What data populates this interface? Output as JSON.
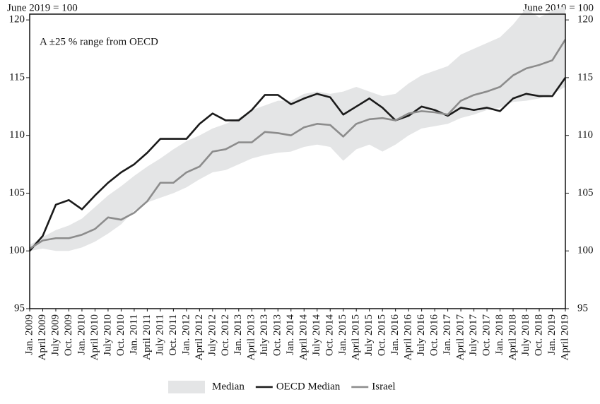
{
  "chart_data": {
    "type": "line",
    "left_note": "June 2019 = 100",
    "right_note": "June 2019 = 100",
    "annotation": "A ±25 % range from OECD",
    "categories": [
      "Jan. 2009",
      "April 2009",
      "July 2009",
      "Oct. 2009",
      "Jan. 2010",
      "April 2010",
      "July 2010",
      "Oct. 2010",
      "Jan. 2011",
      "April 2011",
      "July 2011",
      "Oct. 2011",
      "Jan. 2012",
      "April 2012",
      "July 2012",
      "Oct. 2012",
      "Jan. 2013",
      "April 2013",
      "July 2013",
      "Oct. 2013",
      "Jan. 2014",
      "April 2014",
      "July 2014",
      "Oct. 2014",
      "Jan. 2015",
      "April 2015",
      "July 2015",
      "Oct. 2015",
      "Jan. 2016",
      "April 2016",
      "July 2016",
      "Oct. 2016",
      "Jan. 2017",
      "April 2017",
      "July 2017",
      "Oct. 2017",
      "Jan. 2018",
      "April 2018",
      "July 2018",
      "Oct. 2018",
      "Jan. 2019",
      "April 2019"
    ],
    "series": [
      {
        "name": "Median",
        "kind": "band",
        "color": "#e4e5e6",
        "lower": [
          100.0,
          100.2,
          100.0,
          100.0,
          100.3,
          100.8,
          101.5,
          102.3,
          103.5,
          104.2,
          104.6,
          105.0,
          105.5,
          106.2,
          106.8,
          107.0,
          107.5,
          108.0,
          108.3,
          108.5,
          108.6,
          109.0,
          109.2,
          109.0,
          107.8,
          108.8,
          109.2,
          108.6,
          109.2,
          110.0,
          110.6,
          110.8,
          111.0,
          111.5,
          111.8,
          112.2,
          112.4,
          112.9,
          113.0,
          113.2,
          113.6,
          114.2
        ],
        "upper": [
          100.5,
          101.2,
          101.8,
          102.2,
          102.8,
          103.8,
          104.8,
          105.6,
          106.5,
          107.3,
          108.0,
          108.8,
          109.5,
          110.0,
          110.6,
          111.0,
          111.5,
          112.2,
          112.6,
          113.0,
          113.0,
          113.6,
          113.8,
          113.6,
          113.8,
          114.2,
          113.8,
          113.4,
          113.6,
          114.5,
          115.2,
          115.6,
          116.0,
          117.0,
          117.5,
          118.0,
          118.5,
          119.6,
          121.0,
          120.2,
          120.8,
          121.2
        ]
      },
      {
        "name": "OECD Median",
        "color": "#1a1a1a",
        "values": [
          100.0,
          101.3,
          104.0,
          104.4,
          103.6,
          104.8,
          105.9,
          106.8,
          107.5,
          108.5,
          109.7,
          109.7,
          109.7,
          111.0,
          111.9,
          111.3,
          111.3,
          112.2,
          113.5,
          113.5,
          112.7,
          113.2,
          113.6,
          113.3,
          111.8,
          112.5,
          113.2,
          112.4,
          111.3,
          111.7,
          112.5,
          112.2,
          111.7,
          112.4,
          112.2,
          112.4,
          112.1,
          113.2,
          113.6,
          113.4,
          113.4,
          115.0
        ]
      },
      {
        "name": "Israel",
        "color": "#8c8c8c",
        "values": [
          100.2,
          100.9,
          101.1,
          101.1,
          101.4,
          101.9,
          102.9,
          102.7,
          103.3,
          104.3,
          105.9,
          105.9,
          106.8,
          107.3,
          108.6,
          108.8,
          109.4,
          109.4,
          110.3,
          110.2,
          110.0,
          110.7,
          111.0,
          110.9,
          109.9,
          111.0,
          111.4,
          111.5,
          111.3,
          111.9,
          112.1,
          112.0,
          111.8,
          113.0,
          113.5,
          113.8,
          114.2,
          115.2,
          115.8,
          116.1,
          116.5,
          118.3
        ]
      }
    ],
    "ylim": [
      95,
      120.5
    ],
    "yticks": [
      95,
      100,
      105,
      110,
      115,
      120
    ],
    "y2lim": [
      95,
      120.5
    ],
    "y2ticks": [
      95,
      100,
      105,
      110,
      115,
      120
    ],
    "legend": "bottom"
  }
}
